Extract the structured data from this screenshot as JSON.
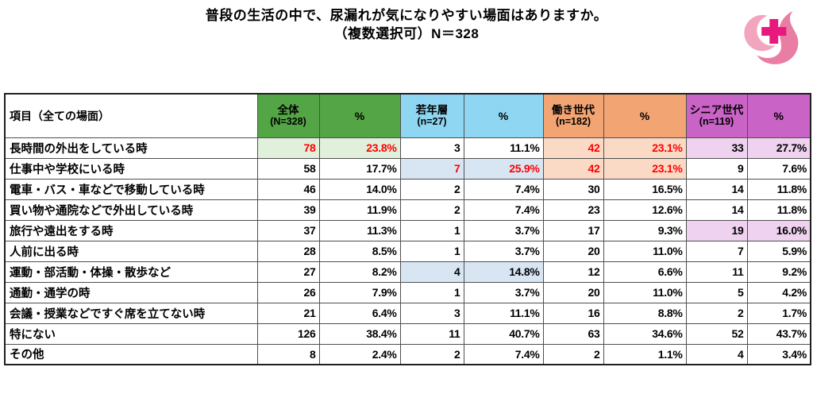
{
  "page": {
    "title_line1": "普段の生活の中で、尿漏れが気になりやすい場面はありますか。",
    "title_line2": "（複数選択可）N＝328"
  },
  "logo": {
    "name": "pink-medical-cross-logo",
    "crescent_color": "#F3A5C0",
    "swoosh_color": "#E97DA4",
    "cross_color": "#E8187C"
  },
  "colors": {
    "green": "#54A546",
    "blue": "#8FD6F2",
    "orange": "#F2A472",
    "magenta": "#C963C6",
    "light_green": "#E0F0DB",
    "light_blue": "#D8E5F3",
    "light_orange": "#FADAC5",
    "light_purple": "#EFD2EF",
    "red_text": "#FF0000",
    "border": "#4f4f4f"
  },
  "table": {
    "label_header": "項目（全ての場面）",
    "groups": [
      {
        "name": "全体",
        "n_label": "(N=328)",
        "pct_label": "%",
        "color_key": "green"
      },
      {
        "name": "若年層",
        "n_label": "(n=27)",
        "pct_label": "%",
        "color_key": "blue"
      },
      {
        "name": "働き世代",
        "n_label": "(n=182)",
        "pct_label": "%",
        "color_key": "orange"
      },
      {
        "name": "シニア世代",
        "n_label": "(n=119)",
        "pct_label": "%",
        "color_key": "magenta"
      }
    ],
    "rows": [
      {
        "label": "長時間の外出をしている時",
        "cells": [
          {
            "v": "78",
            "bg": "light_green",
            "red": true
          },
          {
            "v": "23.8%",
            "bg": "light_green",
            "red": true
          },
          {
            "v": "3"
          },
          {
            "v": "11.1%"
          },
          {
            "v": "42",
            "bg": "light_orange",
            "red": true
          },
          {
            "v": "23.1%",
            "bg": "light_orange",
            "red": true
          },
          {
            "v": "33",
            "bg": "light_purple"
          },
          {
            "v": "27.7%",
            "bg": "light_purple"
          }
        ]
      },
      {
        "label": "仕事中や学校にいる時",
        "cells": [
          {
            "v": "58"
          },
          {
            "v": "17.7%"
          },
          {
            "v": "7",
            "bg": "light_blue",
            "red": true
          },
          {
            "v": "25.9%",
            "bg": "light_blue",
            "red": true
          },
          {
            "v": "42",
            "bg": "light_orange",
            "red": true
          },
          {
            "v": "23.1%",
            "bg": "light_orange",
            "red": true
          },
          {
            "v": "9"
          },
          {
            "v": "7.6%"
          }
        ]
      },
      {
        "label": "電車・バス・車などで移動している時",
        "cells": [
          {
            "v": "46"
          },
          {
            "v": "14.0%"
          },
          {
            "v": "2"
          },
          {
            "v": "7.4%"
          },
          {
            "v": "30"
          },
          {
            "v": "16.5%"
          },
          {
            "v": "14"
          },
          {
            "v": "11.8%"
          }
        ]
      },
      {
        "label": "買い物や通院などで外出している時",
        "cells": [
          {
            "v": "39"
          },
          {
            "v": "11.9%"
          },
          {
            "v": "2"
          },
          {
            "v": "7.4%"
          },
          {
            "v": "23"
          },
          {
            "v": "12.6%"
          },
          {
            "v": "14"
          },
          {
            "v": "11.8%"
          }
        ]
      },
      {
        "label": "旅行や遠出をする時",
        "cells": [
          {
            "v": "37"
          },
          {
            "v": "11.3%"
          },
          {
            "v": "1"
          },
          {
            "v": "3.7%"
          },
          {
            "v": "17"
          },
          {
            "v": "9.3%"
          },
          {
            "v": "19",
            "bg": "light_purple"
          },
          {
            "v": "16.0%",
            "bg": "light_purple"
          }
        ]
      },
      {
        "label": "人前に出る時",
        "cells": [
          {
            "v": "28"
          },
          {
            "v": "8.5%"
          },
          {
            "v": "1"
          },
          {
            "v": "3.7%"
          },
          {
            "v": "20"
          },
          {
            "v": "11.0%"
          },
          {
            "v": "7"
          },
          {
            "v": "5.9%"
          }
        ]
      },
      {
        "label": "運動・部活動・体操・散歩など",
        "cells": [
          {
            "v": "27"
          },
          {
            "v": "8.2%"
          },
          {
            "v": "4",
            "bg": "light_blue"
          },
          {
            "v": "14.8%",
            "bg": "light_blue"
          },
          {
            "v": "12"
          },
          {
            "v": "6.6%"
          },
          {
            "v": "11"
          },
          {
            "v": "9.2%"
          }
        ]
      },
      {
        "label": "通勤・通学の時",
        "cells": [
          {
            "v": "26"
          },
          {
            "v": "7.9%"
          },
          {
            "v": "1"
          },
          {
            "v": "3.7%"
          },
          {
            "v": "20"
          },
          {
            "v": "11.0%"
          },
          {
            "v": "5"
          },
          {
            "v": "4.2%"
          }
        ]
      },
      {
        "label": "会議・授業などですぐ席を立てない時",
        "cells": [
          {
            "v": "21"
          },
          {
            "v": "6.4%"
          },
          {
            "v": "3"
          },
          {
            "v": "11.1%"
          },
          {
            "v": "16"
          },
          {
            "v": "8.8%"
          },
          {
            "v": "2"
          },
          {
            "v": "1.7%"
          }
        ]
      },
      {
        "label": "特にない",
        "cells": [
          {
            "v": "126"
          },
          {
            "v": "38.4%"
          },
          {
            "v": "11"
          },
          {
            "v": "40.7%"
          },
          {
            "v": "63"
          },
          {
            "v": "34.6%"
          },
          {
            "v": "52"
          },
          {
            "v": "43.7%"
          }
        ]
      },
      {
        "label": "その他",
        "cells": [
          {
            "v": "8"
          },
          {
            "v": "2.4%"
          },
          {
            "v": "2"
          },
          {
            "v": "7.4%"
          },
          {
            "v": "2"
          },
          {
            "v": "1.1%"
          },
          {
            "v": "4"
          },
          {
            "v": "3.4%"
          }
        ]
      }
    ]
  },
  "chart_data": {
    "type": "table",
    "title": "普段の生活の中で、尿漏れが気になりやすい場面はありますか。（複数選択可）N＝328",
    "categories": [
      "長時間の外出をしている時",
      "仕事中や学校にいる時",
      "電車・バス・車などで移動している時",
      "買い物や通院などで外出している時",
      "旅行や遠出をする時",
      "人前に出る時",
      "運動・部活動・体操・散歩など",
      "通勤・通学の時",
      "会議・授業などですぐ席を立てない時",
      "特にない",
      "その他"
    ],
    "series": [
      {
        "name": "全体",
        "n": 328,
        "counts": [
          78,
          58,
          46,
          39,
          37,
          28,
          27,
          26,
          21,
          126,
          8
        ],
        "percents": [
          23.8,
          17.7,
          14.0,
          11.9,
          11.3,
          8.5,
          8.2,
          7.9,
          6.4,
          38.4,
          2.4
        ]
      },
      {
        "name": "若年層",
        "n": 27,
        "counts": [
          3,
          7,
          2,
          2,
          1,
          1,
          4,
          1,
          3,
          11,
          2
        ],
        "percents": [
          11.1,
          25.9,
          7.4,
          7.4,
          3.7,
          3.7,
          14.8,
          3.7,
          11.1,
          40.7,
          7.4
        ]
      },
      {
        "name": "働き世代",
        "n": 182,
        "counts": [
          42,
          42,
          30,
          23,
          17,
          20,
          12,
          20,
          16,
          63,
          2
        ],
        "percents": [
          23.1,
          23.1,
          16.5,
          12.6,
          9.3,
          11.0,
          6.6,
          11.0,
          8.8,
          34.6,
          1.1
        ]
      },
      {
        "name": "シニア世代",
        "n": 119,
        "counts": [
          33,
          9,
          14,
          14,
          19,
          7,
          11,
          5,
          2,
          52,
          4
        ],
        "percents": [
          27.7,
          7.6,
          11.8,
          11.8,
          16.0,
          5.9,
          9.2,
          4.2,
          1.7,
          43.7,
          3.4
        ]
      }
    ]
  }
}
